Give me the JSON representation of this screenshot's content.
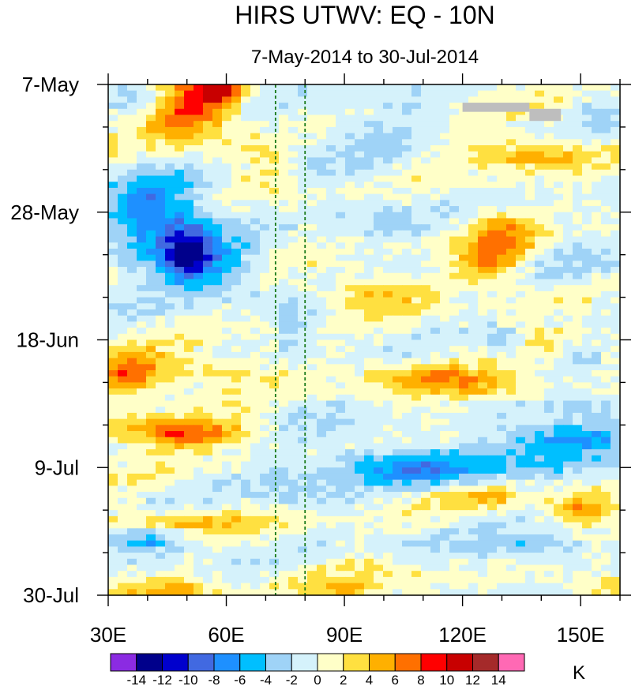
{
  "chart_data": {
    "type": "heatmap",
    "title": "HIRS UTWV: EQ - 10N",
    "subtitle": "7-May-2014 to 30-Jul-2014",
    "x_axis": {
      "range": [
        30,
        160
      ],
      "ticks": [
        {
          "value": 30,
          "label": "30E"
        },
        {
          "value": 60,
          "label": "60E"
        },
        {
          "value": 90,
          "label": "90E"
        },
        {
          "value": 120,
          "label": "120E"
        },
        {
          "value": 150,
          "label": "150E"
        }
      ],
      "minor_step": 10
    },
    "y_axis": {
      "range_days": [
        0,
        84
      ],
      "direction": "top-to-bottom",
      "ticks": [
        {
          "value": 0,
          "label": "7-May"
        },
        {
          "value": 21,
          "label": "28-May"
        },
        {
          "value": 42,
          "label": "18-Jun"
        },
        {
          "value": 63,
          "label": "9-Jul"
        },
        {
          "value": 84,
          "label": "30-Jul"
        }
      ],
      "minor_step": 7
    },
    "reference_lines": {
      "style": "dashed",
      "color": "#1a7a1a",
      "x": [
        72.5,
        80
      ]
    },
    "missing_data": {
      "color": "#bebebe",
      "regions": [
        {
          "x": [
            120,
            137
          ],
          "days": [
            3,
            4.5
          ]
        },
        {
          "x": [
            137,
            145
          ],
          "days": [
            4,
            6
          ]
        }
      ]
    },
    "levels": [
      -14,
      -12,
      -10,
      -8,
      -6,
      -4,
      -2,
      0,
      2,
      4,
      6,
      8,
      10,
      12,
      14
    ],
    "colors": [
      "#8b2be2",
      "#00008b",
      "#0000cd",
      "#4169e1",
      "#1e90ff",
      "#00bfff",
      "#9fd3f7",
      "#d5f2fb",
      "#ffffc8",
      "#ffe040",
      "#ffb000",
      "#ff7000",
      "#ff0000",
      "#c80000",
      "#a52a2a",
      "#ff69b4"
    ],
    "colorbar": {
      "units": "K",
      "labels": [
        "-14",
        "-12",
        "-10",
        "-8",
        "-6",
        "-4",
        "-2",
        "0",
        "2",
        "4",
        "6",
        "8",
        "10",
        "12",
        "14"
      ]
    },
    "anomaly_features": [
      {
        "lon": 52,
        "day": 3,
        "amp": 6,
        "sx": 7,
        "sy": 3
      },
      {
        "lon": 59,
        "day": 1,
        "amp": 8,
        "sx": 4,
        "sy": 1.5
      },
      {
        "lon": 48,
        "day": 6,
        "amp": 4,
        "sx": 9,
        "sy": 3
      },
      {
        "lon": 38,
        "day": 2,
        "amp": -4,
        "sx": 5,
        "sy": 2
      },
      {
        "lon": 45,
        "day": 24,
        "amp": -6,
        "sx": 10,
        "sy": 6
      },
      {
        "lon": 50,
        "day": 28,
        "amp": -8,
        "sx": 4,
        "sy": 3
      },
      {
        "lon": 40,
        "day": 20,
        "amp": -4,
        "sx": 6,
        "sy": 3
      },
      {
        "lon": 60,
        "day": 30,
        "amp": -4,
        "sx": 8,
        "sy": 3
      },
      {
        "lon": 36,
        "day": 46,
        "amp": 4,
        "sx": 8,
        "sy": 2
      },
      {
        "lon": 35,
        "day": 48.5,
        "amp": 6,
        "sx": 5,
        "sy": 1.5
      },
      {
        "lon": 55,
        "day": 47,
        "amp": 4,
        "sx": 10,
        "sy": 1.5
      },
      {
        "lon": 45,
        "day": 57,
        "amp": 6,
        "sx": 12,
        "sy": 1.8
      },
      {
        "lon": 55,
        "day": 57.5,
        "amp": 4,
        "sx": 9,
        "sy": 1.2
      },
      {
        "lon": 50,
        "day": 72,
        "amp": 4,
        "sx": 16,
        "sy": 1.3
      },
      {
        "lon": 40,
        "day": 75,
        "amp": -6,
        "sx": 8,
        "sy": 1.5
      },
      {
        "lon": 45,
        "day": 83,
        "amp": 4,
        "sx": 10,
        "sy": 1.2
      },
      {
        "lon": 130,
        "day": 26,
        "amp": 6,
        "sx": 6,
        "sy": 3
      },
      {
        "lon": 125,
        "day": 30,
        "amp": 4,
        "sx": 8,
        "sy": 2
      },
      {
        "lon": 139,
        "day": 12,
        "amp": 4,
        "sx": 9,
        "sy": 1.5
      },
      {
        "lon": 130,
        "day": 10,
        "amp": 2,
        "sx": 12,
        "sy": 2
      },
      {
        "lon": 128,
        "day": 62,
        "amp": -4,
        "sx": 22,
        "sy": 1.8
      },
      {
        "lon": 145,
        "day": 58,
        "amp": -6,
        "sx": 12,
        "sy": 1.5
      },
      {
        "lon": 150,
        "day": 54,
        "amp": -4,
        "sx": 8,
        "sy": 2
      },
      {
        "lon": 110,
        "day": 64,
        "amp": -4,
        "sx": 12,
        "sy": 2
      },
      {
        "lon": 130,
        "day": 42,
        "amp": -4,
        "sx": 4,
        "sy": 1.5
      },
      {
        "lon": 150,
        "day": 44,
        "amp": -4,
        "sx": 5,
        "sy": 2
      },
      {
        "lon": 145,
        "day": 42,
        "amp": 4,
        "sx": 10,
        "sy": 1.5
      },
      {
        "lon": 98,
        "day": 34,
        "amp": 4,
        "sx": 10,
        "sy": 2
      },
      {
        "lon": 110,
        "day": 30,
        "amp": -2,
        "sx": 6,
        "sy": 2
      },
      {
        "lon": 98,
        "day": 22,
        "amp": -2,
        "sx": 8,
        "sy": 3
      },
      {
        "lon": 96,
        "day": 7,
        "amp": -2,
        "sx": 14,
        "sy": 5
      },
      {
        "lon": 80,
        "day": 40,
        "amp": -2,
        "sx": 6,
        "sy": 3
      },
      {
        "lon": 110,
        "day": 48,
        "amp": 4,
        "sx": 10,
        "sy": 1.3
      },
      {
        "lon": 125,
        "day": 50,
        "amp": 4,
        "sx": 14,
        "sy": 1.5
      },
      {
        "lon": 150,
        "day": 70,
        "amp": 6,
        "sx": 6,
        "sy": 1.5
      },
      {
        "lon": 125,
        "day": 68,
        "amp": 4,
        "sx": 7,
        "sy": 1.3
      },
      {
        "lon": 100,
        "day": 80,
        "amp": 2,
        "sx": 12,
        "sy": 2
      },
      {
        "lon": 90,
        "day": 83,
        "amp": 4,
        "sx": 5,
        "sy": 1
      },
      {
        "lon": 155,
        "day": 82,
        "amp": 4,
        "sx": 6,
        "sy": 1.5
      },
      {
        "lon": 115,
        "day": 77,
        "amp": -2,
        "sx": 14,
        "sy": 2
      },
      {
        "lon": 140,
        "day": 76,
        "amp": -4,
        "sx": 8,
        "sy": 1.5
      },
      {
        "lon": 90,
        "day": 60,
        "amp": -2,
        "sx": 10,
        "sy": 4
      },
      {
        "lon": 75,
        "day": 66,
        "amp": -2,
        "sx": 10,
        "sy": 3
      },
      {
        "lon": 150,
        "day": 30,
        "amp": -2,
        "sx": 10,
        "sy": 3
      },
      {
        "lon": 155,
        "day": 5,
        "amp": -2,
        "sx": 5,
        "sy": 2
      },
      {
        "lon": 70,
        "day": 14,
        "amp": 2,
        "sx": 6,
        "sy": 3
      }
    ]
  }
}
